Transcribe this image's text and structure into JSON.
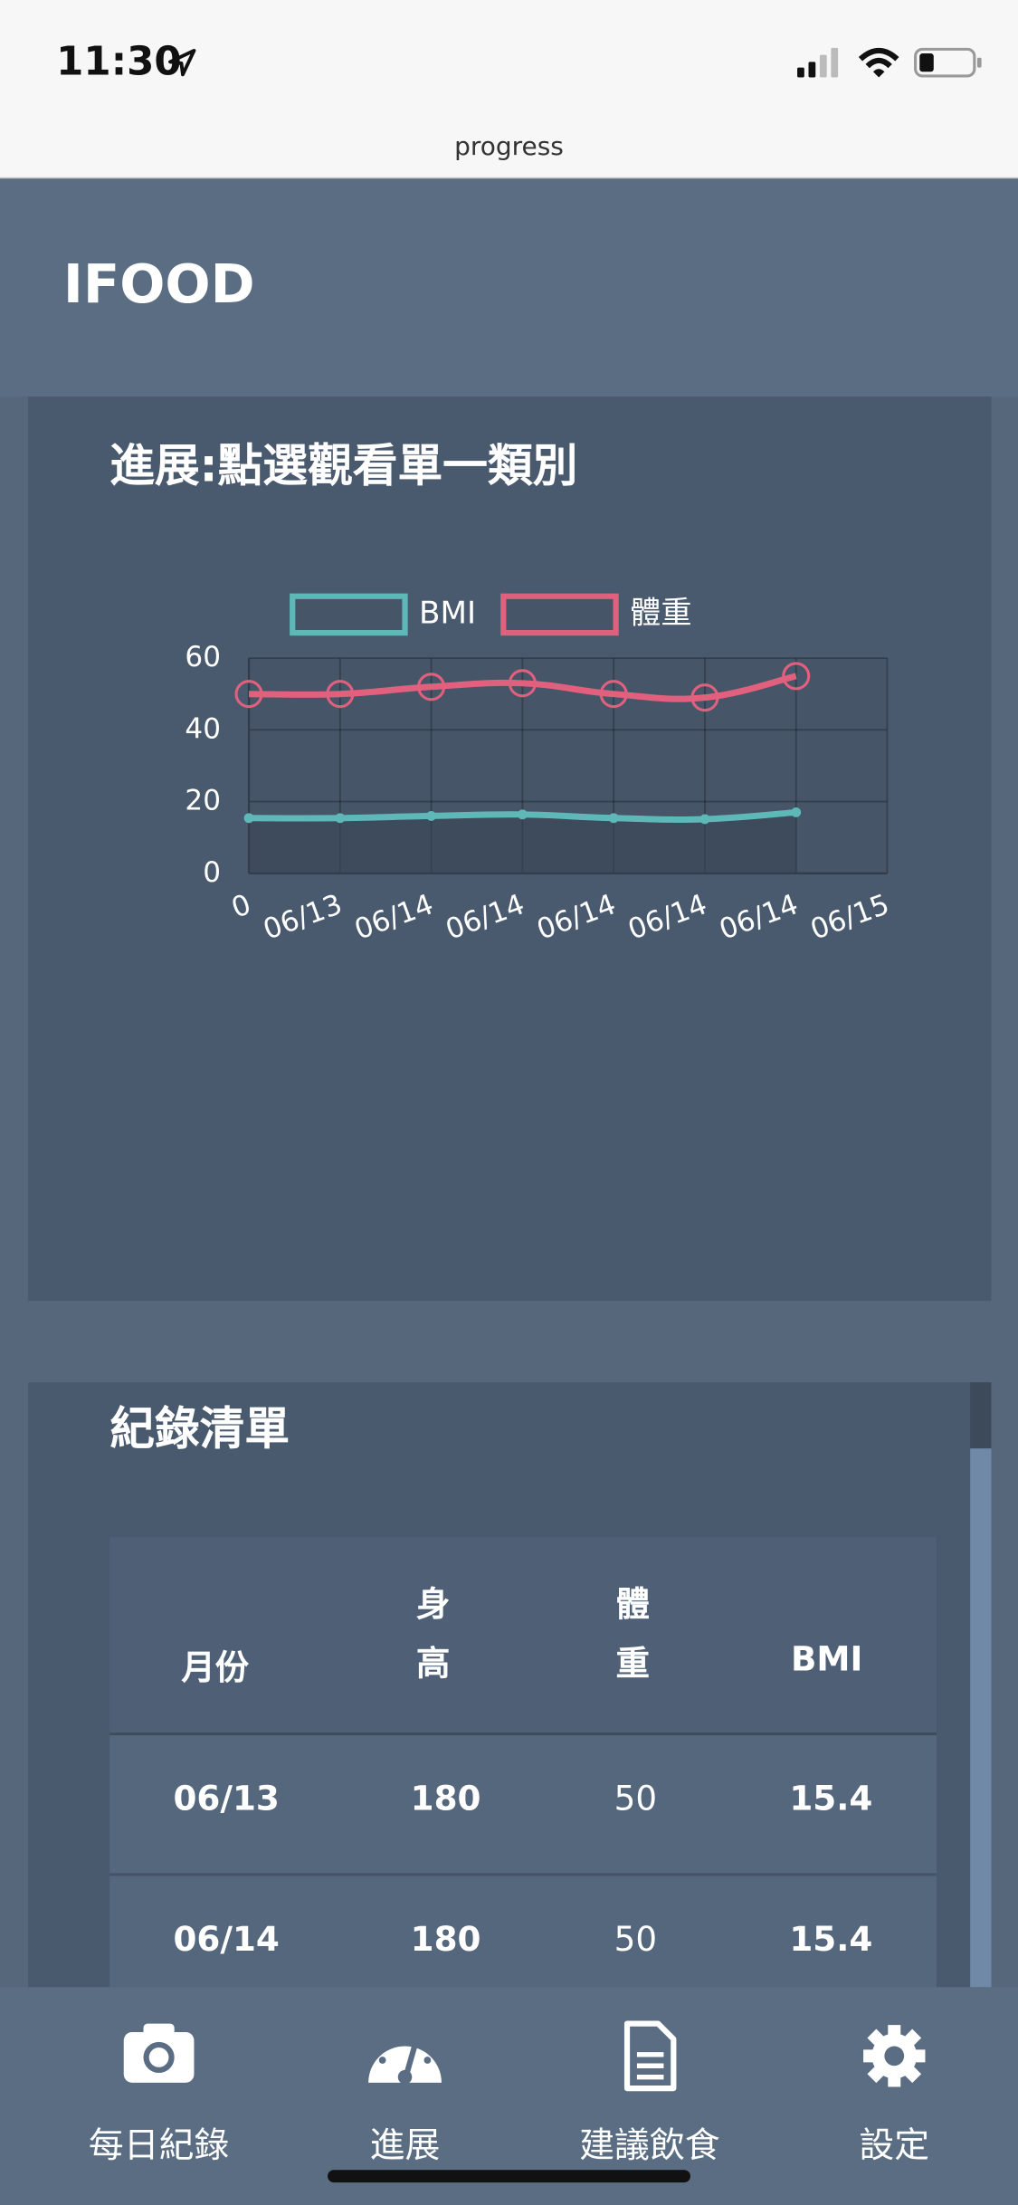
{
  "status_bar": {
    "time": "11:30"
  },
  "browser": {
    "title": "progress"
  },
  "header": {
    "title": "IFOOD"
  },
  "chart_card": {
    "title": "進展:點選觀看單一類別"
  },
  "chart_data": {
    "type": "line",
    "categories": [
      "0",
      "06/13",
      "06/14",
      "06/14",
      "06/14",
      "06/14",
      "06/14",
      "06/15"
    ],
    "series": [
      {
        "name": "BMI",
        "color": "#5fb8b8",
        "fill": true,
        "values": [
          15.4,
          15.4,
          16,
          16.4,
          15.4,
          15.1,
          17,
          null
        ]
      },
      {
        "name": "體重",
        "color": "#e0607e",
        "values": [
          50,
          50,
          52,
          53,
          50,
          49,
          55,
          null
        ]
      }
    ],
    "ylim": [
      0,
      60
    ],
    "yticks": [
      0,
      20,
      40,
      60
    ],
    "grid": true,
    "legend": "top"
  },
  "records": {
    "title": "紀錄清單",
    "table": {
      "columns": [
        "月份",
        "身高",
        "體重",
        "BMI"
      ],
      "rows": [
        [
          "06/13",
          180,
          50,
          15.4
        ],
        [
          "06/14",
          180,
          50,
          15.4
        ]
      ]
    }
  },
  "nav": {
    "items": [
      "每日紀錄",
      "進展",
      "建議飲食",
      "設定"
    ]
  }
}
